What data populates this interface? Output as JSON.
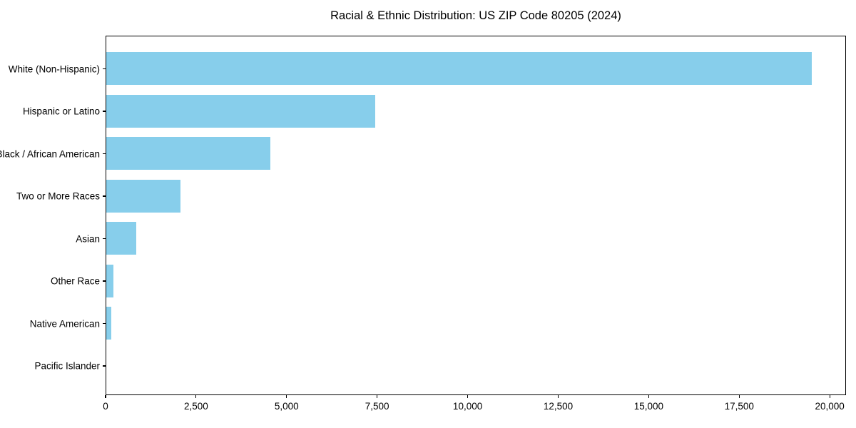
{
  "title": "Racial & Ethnic Distribution: US ZIP Code 80205 (2024)",
  "chart_data": {
    "type": "bar",
    "orientation": "horizontal",
    "title": "Racial & Ethnic Distribution: US ZIP Code 80205 (2024)",
    "categories": [
      "White (Non-Hispanic)",
      "Hispanic or Latino",
      "Black / African American",
      "Two or More Races",
      "Asian",
      "Other Race",
      "Native American",
      "Pacific Islander"
    ],
    "values": [
      19480,
      7430,
      4530,
      2050,
      830,
      190,
      140,
      0
    ],
    "xlabel": "",
    "ylabel": "",
    "xlim": [
      0,
      20450
    ],
    "x_ticks": [
      0,
      2500,
      5000,
      7500,
      10000,
      12500,
      15000,
      17500,
      20000
    ],
    "x_tick_labels": [
      "0",
      "2,500",
      "5,000",
      "7,500",
      "10,000",
      "12,500",
      "15,000",
      "17,500",
      "20,000"
    ],
    "bar_color": "#87CEEB",
    "grid": false,
    "legend": null
  }
}
